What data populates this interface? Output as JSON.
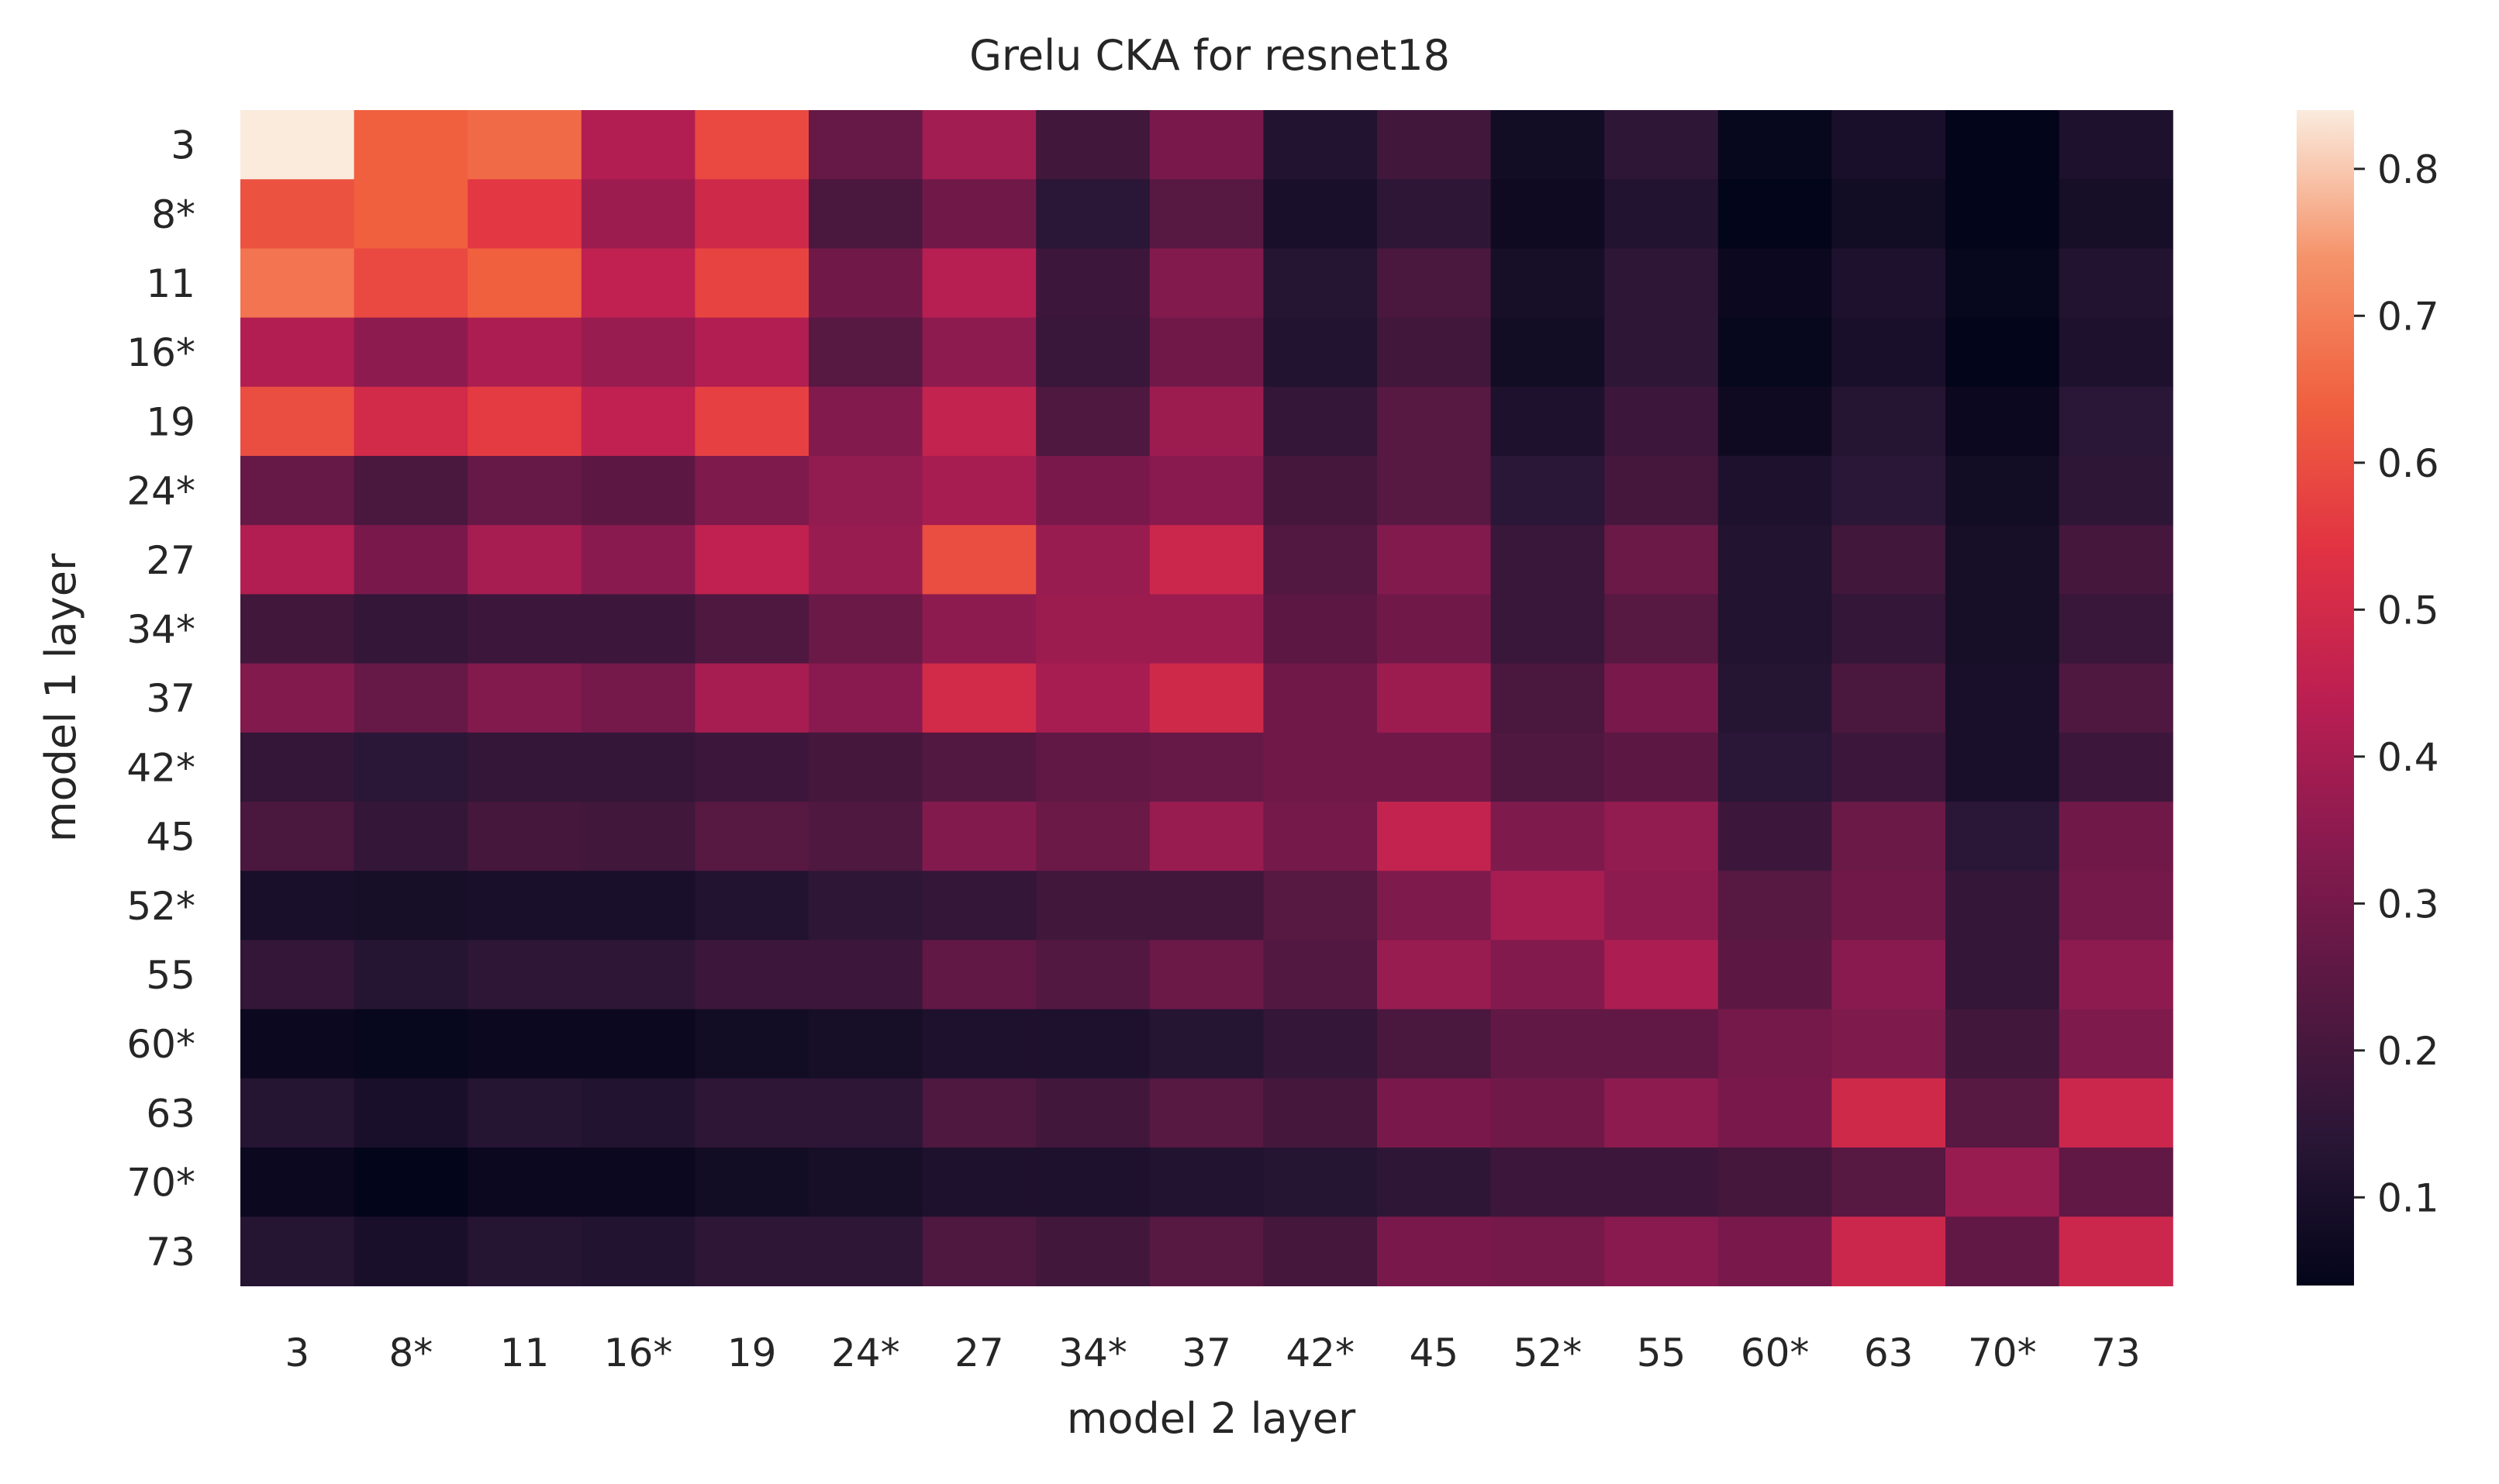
{
  "chart_data": {
    "type": "heatmap",
    "title": "Grelu CKA for resnet18",
    "xlabel": "model 2 layer",
    "ylabel": "model 1 layer",
    "x_categories": [
      "3",
      "8*",
      "11",
      "16*",
      "19",
      "24*",
      "27",
      "34*",
      "37",
      "42*",
      "45",
      "52*",
      "55",
      "60*",
      "63",
      "70*",
      "73"
    ],
    "y_categories": [
      "3",
      "8*",
      "11",
      "16*",
      "19",
      "24*",
      "27",
      "34*",
      "37",
      "42*",
      "45",
      "52*",
      "55",
      "60*",
      "63",
      "70*",
      "73"
    ],
    "values": [
      [
        0.84,
        0.64,
        0.66,
        0.42,
        0.59,
        0.27,
        0.39,
        0.19,
        0.31,
        0.12,
        0.19,
        0.08,
        0.15,
        0.05,
        0.1,
        0.04,
        0.11
      ],
      [
        0.61,
        0.64,
        0.55,
        0.38,
        0.49,
        0.21,
        0.29,
        0.14,
        0.24,
        0.1,
        0.15,
        0.07,
        0.12,
        0.04,
        0.08,
        0.04,
        0.09
      ],
      [
        0.68,
        0.59,
        0.64,
        0.45,
        0.58,
        0.29,
        0.43,
        0.18,
        0.33,
        0.13,
        0.21,
        0.09,
        0.15,
        0.06,
        0.11,
        0.05,
        0.12
      ],
      [
        0.42,
        0.35,
        0.41,
        0.37,
        0.42,
        0.24,
        0.35,
        0.17,
        0.29,
        0.12,
        0.19,
        0.08,
        0.15,
        0.05,
        0.1,
        0.04,
        0.11
      ],
      [
        0.6,
        0.5,
        0.56,
        0.45,
        0.57,
        0.33,
        0.46,
        0.22,
        0.38,
        0.16,
        0.24,
        0.11,
        0.18,
        0.07,
        0.13,
        0.06,
        0.14
      ],
      [
        0.27,
        0.21,
        0.27,
        0.25,
        0.32,
        0.36,
        0.4,
        0.31,
        0.34,
        0.2,
        0.24,
        0.14,
        0.2,
        0.11,
        0.14,
        0.08,
        0.15
      ],
      [
        0.42,
        0.31,
        0.4,
        0.34,
        0.45,
        0.37,
        0.6,
        0.37,
        0.48,
        0.23,
        0.33,
        0.17,
        0.28,
        0.12,
        0.19,
        0.09,
        0.2
      ],
      [
        0.19,
        0.16,
        0.18,
        0.18,
        0.22,
        0.28,
        0.35,
        0.38,
        0.38,
        0.25,
        0.29,
        0.17,
        0.24,
        0.12,
        0.16,
        0.09,
        0.17
      ],
      [
        0.33,
        0.27,
        0.33,
        0.3,
        0.4,
        0.34,
        0.5,
        0.4,
        0.49,
        0.29,
        0.38,
        0.21,
        0.31,
        0.13,
        0.21,
        0.1,
        0.22
      ],
      [
        0.16,
        0.14,
        0.16,
        0.16,
        0.18,
        0.2,
        0.23,
        0.26,
        0.27,
        0.29,
        0.29,
        0.22,
        0.25,
        0.14,
        0.18,
        0.1,
        0.18
      ],
      [
        0.21,
        0.16,
        0.2,
        0.19,
        0.24,
        0.22,
        0.33,
        0.28,
        0.37,
        0.3,
        0.46,
        0.32,
        0.36,
        0.18,
        0.28,
        0.14,
        0.29
      ],
      [
        0.1,
        0.09,
        0.1,
        0.1,
        0.12,
        0.15,
        0.16,
        0.19,
        0.19,
        0.24,
        0.32,
        0.4,
        0.35,
        0.24,
        0.29,
        0.16,
        0.3
      ],
      [
        0.16,
        0.13,
        0.15,
        0.15,
        0.18,
        0.18,
        0.26,
        0.23,
        0.28,
        0.23,
        0.37,
        0.33,
        0.41,
        0.25,
        0.34,
        0.16,
        0.35
      ],
      [
        0.06,
        0.05,
        0.06,
        0.06,
        0.08,
        0.09,
        0.11,
        0.11,
        0.13,
        0.16,
        0.21,
        0.26,
        0.26,
        0.3,
        0.32,
        0.19,
        0.32
      ],
      [
        0.13,
        0.1,
        0.13,
        0.12,
        0.15,
        0.15,
        0.22,
        0.19,
        0.24,
        0.2,
        0.31,
        0.29,
        0.35,
        0.31,
        0.49,
        0.24,
        0.48
      ],
      [
        0.06,
        0.04,
        0.06,
        0.06,
        0.08,
        0.09,
        0.11,
        0.11,
        0.12,
        0.13,
        0.15,
        0.18,
        0.18,
        0.2,
        0.24,
        0.37,
        0.26
      ],
      [
        0.13,
        0.1,
        0.13,
        0.12,
        0.15,
        0.15,
        0.22,
        0.19,
        0.24,
        0.2,
        0.31,
        0.3,
        0.34,
        0.31,
        0.48,
        0.26,
        0.48
      ]
    ],
    "colorbar": {
      "vmin": 0.04,
      "vmax": 0.84,
      "ticks": [
        "0.1",
        "0.2",
        "0.3",
        "0.4",
        "0.5",
        "0.6",
        "0.7",
        "0.8"
      ],
      "colormap": "rocket"
    },
    "grid": false,
    "legend": "colorbar-right"
  }
}
